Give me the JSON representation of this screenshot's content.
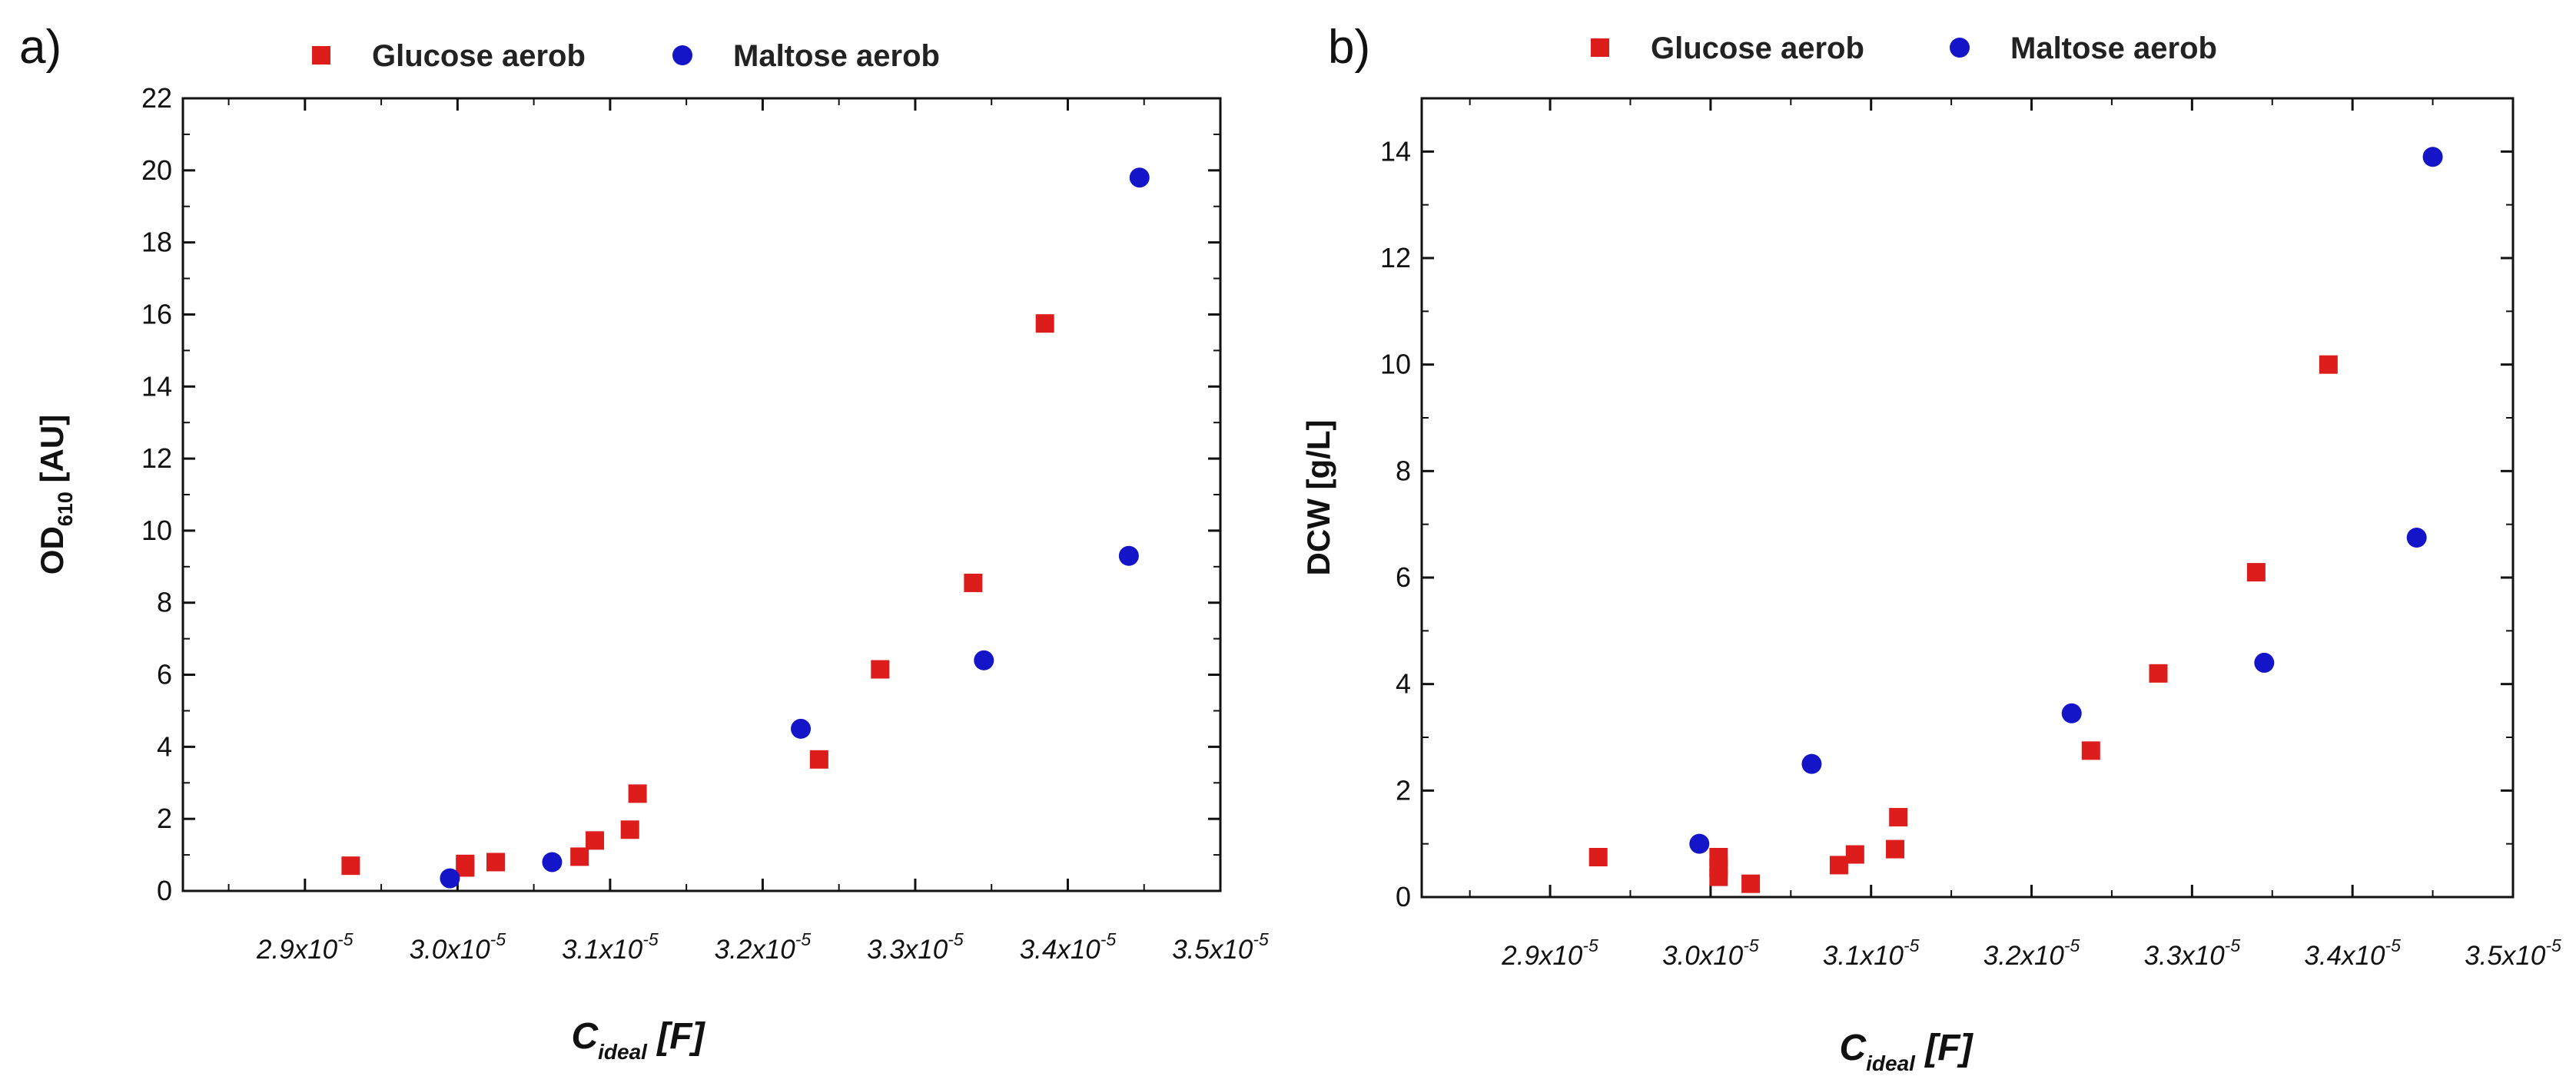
{
  "colors": {
    "glucose": "#dd1c1c",
    "maltose": "#1414c8",
    "axis": "#111111"
  },
  "chart_data": [
    {
      "type": "scatter",
      "panel_label": "a)",
      "ylabel_main": "OD",
      "ylabel_sub": "610",
      "ylabel_unit": " [AU]",
      "xlabel_main": "C",
      "xlabel_sub": "ideal",
      "xlabel_unit": " [F]",
      "xlim": [
        2.82e-05,
        3.5e-05
      ],
      "ylim": [
        0,
        22
      ],
      "yticks": [
        0,
        2,
        4,
        6,
        8,
        10,
        12,
        14,
        16,
        18,
        20,
        22
      ],
      "ytick_labels": [
        "0",
        "2",
        "4",
        "6",
        "8",
        "10",
        "12",
        "14",
        "16",
        "18",
        "20",
        "22"
      ],
      "xticks": [
        2.9e-05,
        3e-05,
        3.1e-05,
        3.2e-05,
        3.3e-05,
        3.4e-05,
        3.5e-05
      ],
      "xtick_coefs": [
        "2.9x10",
        "3.0x10",
        "3.1x10",
        "3.2x10",
        "3.3x10",
        "3.4x10",
        "3.5x10"
      ],
      "xtick_exps": [
        "-5",
        "-5",
        "-5",
        "-5",
        "-5",
        "-5",
        "-5"
      ],
      "legend": [
        {
          "name": "Glucose aerob",
          "marker": "square"
        },
        {
          "name": "Maltose aerob",
          "marker": "circle"
        }
      ],
      "series": [
        {
          "name": "Glucose aerob",
          "marker": "square",
          "x": [
            2.93e-05,
            3.005e-05,
            3.005e-05,
            3.025e-05,
            3.08e-05,
            3.09e-05,
            3.113e-05,
            3.118e-05,
            3.237e-05,
            3.277e-05,
            3.338e-05,
            3.385e-05
          ],
          "y": [
            0.7,
            0.65,
            0.75,
            0.8,
            0.95,
            1.4,
            1.7,
            2.7,
            3.65,
            6.15,
            8.55,
            15.75
          ]
        },
        {
          "name": "Maltose aerob",
          "marker": "circle",
          "x": [
            2.995e-05,
            3.062e-05,
            3.225e-05,
            3.345e-05,
            3.44e-05,
            3.447e-05
          ],
          "y": [
            0.35,
            0.8,
            4.5,
            6.4,
            9.3,
            19.8
          ]
        }
      ]
    },
    {
      "type": "scatter",
      "panel_label": "b)",
      "ylabel_main": "DCW [g/L]",
      "ylabel_sub": "",
      "ylabel_unit": "",
      "xlabel_main": "C",
      "xlabel_sub": "ideal",
      "xlabel_unit": " [F]",
      "xlim": [
        2.82e-05,
        3.5e-05
      ],
      "ylim": [
        0,
        15
      ],
      "yticks": [
        0,
        2,
        4,
        6,
        8,
        10,
        12,
        14
      ],
      "ytick_labels": [
        "0",
        "2",
        "4",
        "6",
        "8",
        "10",
        "12",
        "14"
      ],
      "xticks": [
        2.9e-05,
        3e-05,
        3.1e-05,
        3.2e-05,
        3.3e-05,
        3.4e-05,
        3.5e-05
      ],
      "xtick_coefs": [
        "2.9x10",
        "3.0x10",
        "3.1x10",
        "3.2x10",
        "3.3x10",
        "3.4x10",
        "3.5x10"
      ],
      "xtick_exps": [
        "-5",
        "-5",
        "-5",
        "-5",
        "-5",
        "-5",
        "-5"
      ],
      "legend": [
        {
          "name": "Glucose aerob",
          "marker": "square"
        },
        {
          "name": "Maltose aerob",
          "marker": "circle"
        }
      ],
      "series": [
        {
          "name": "Glucose aerob",
          "marker": "square",
          "x": [
            2.93e-05,
            3.005e-05,
            3.005e-05,
            3.005e-05,
            3.025e-05,
            3.08e-05,
            3.09e-05,
            3.115e-05,
            3.117e-05,
            3.237e-05,
            3.279e-05,
            3.34e-05,
            3.385e-05
          ],
          "y": [
            0.75,
            0.75,
            0.55,
            0.38,
            0.25,
            0.6,
            0.8,
            0.9,
            1.5,
            2.75,
            4.2,
            6.1,
            10.0
          ]
        },
        {
          "name": "Maltose aerob",
          "marker": "circle",
          "x": [
            2.993e-05,
            3.063e-05,
            3.225e-05,
            3.345e-05,
            3.44e-05,
            3.45e-05
          ],
          "y": [
            1.0,
            2.5,
            3.45,
            4.4,
            6.75,
            13.9
          ]
        }
      ]
    }
  ]
}
